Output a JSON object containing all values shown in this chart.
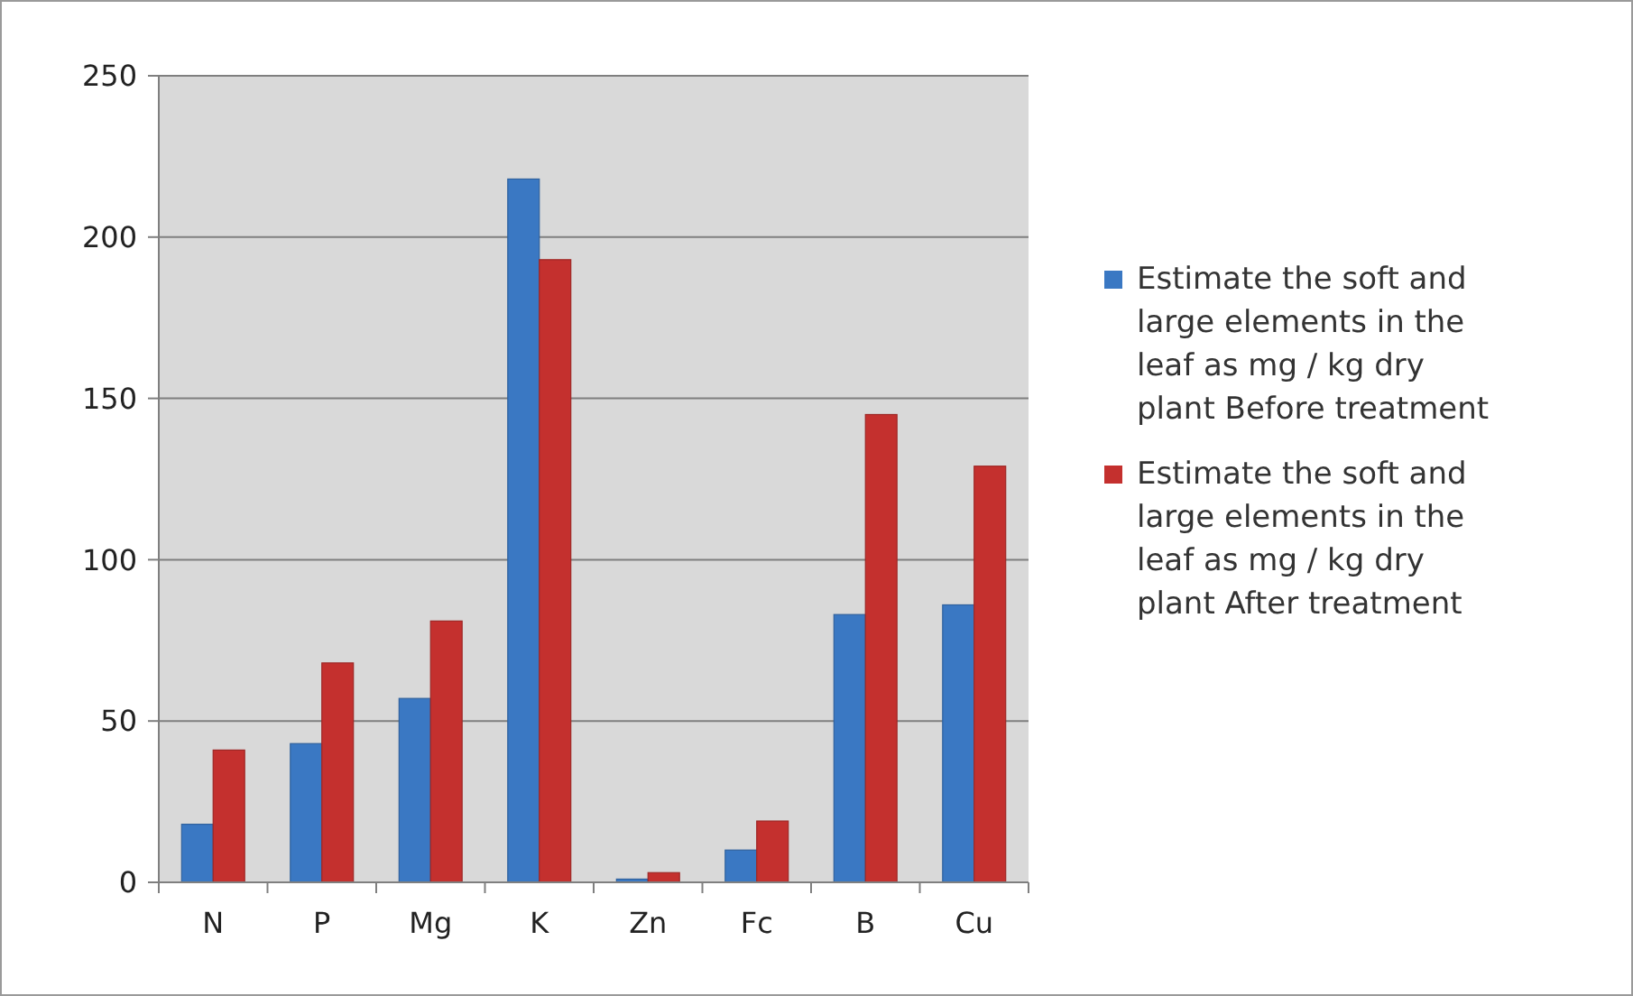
{
  "chart_data": {
    "type": "bar",
    "categories": [
      "N",
      "P",
      "Mg",
      "K",
      "Zn",
      "Fc",
      "B",
      "Cu"
    ],
    "series": [
      {
        "name": "Estimate the soft and large elements in the leaf as mg / kg dry plant Before treatment",
        "color": "#3a78c3",
        "values": [
          18,
          43,
          57,
          218,
          1,
          10,
          83,
          86
        ]
      },
      {
        "name": "Estimate the soft and large elements in the leaf as mg / kg dry plant After treatment",
        "color": "#c4302e",
        "values": [
          41,
          68,
          81,
          193,
          3,
          19,
          145,
          129
        ]
      }
    ],
    "ylim": [
      0,
      250
    ],
    "yticks": [
      0,
      50,
      100,
      150,
      200,
      250
    ],
    "grid": "y",
    "legend": "right"
  }
}
